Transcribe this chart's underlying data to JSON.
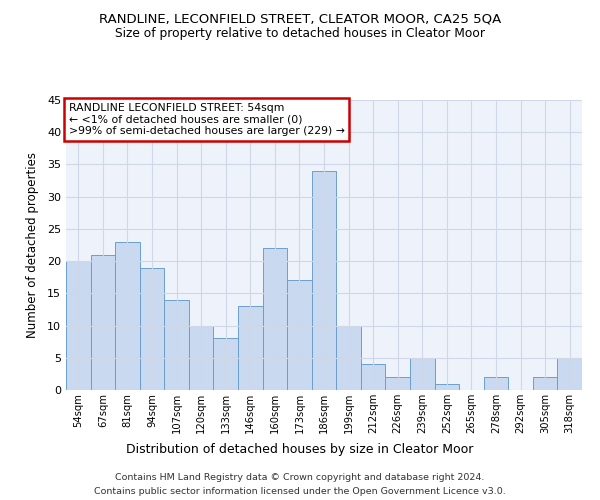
{
  "title": "RANDLINE, LECONFIELD STREET, CLEATOR MOOR, CA25 5QA",
  "subtitle": "Size of property relative to detached houses in Cleator Moor",
  "xlabel": "Distribution of detached houses by size in Cleator Moor",
  "ylabel": "Number of detached properties",
  "categories": [
    "54sqm",
    "67sqm",
    "81sqm",
    "94sqm",
    "107sqm",
    "120sqm",
    "133sqm",
    "146sqm",
    "160sqm",
    "173sqm",
    "186sqm",
    "199sqm",
    "212sqm",
    "226sqm",
    "239sqm",
    "252sqm",
    "265sqm",
    "278sqm",
    "292sqm",
    "305sqm",
    "318sqm"
  ],
  "values": [
    20,
    21,
    23,
    19,
    14,
    10,
    8,
    13,
    22,
    17,
    34,
    10,
    4,
    2,
    5,
    1,
    0,
    2,
    0,
    2,
    5
  ],
  "bar_color": "#c9d9f0",
  "bar_edge_color": "#6b9fcf",
  "ylim": [
    0,
    45
  ],
  "yticks": [
    0,
    5,
    10,
    15,
    20,
    25,
    30,
    35,
    40,
    45
  ],
  "annotation_title": "RANDLINE LECONFIELD STREET: 54sqm",
  "annotation_line1": "← <1% of detached houses are smaller (0)",
  "annotation_line2": ">99% of semi-detached houses are larger (229) →",
  "annotation_box_color": "#ffffff",
  "annotation_box_edge": "#cc0000",
  "footer_line1": "Contains HM Land Registry data © Crown copyright and database right 2024.",
  "footer_line2": "Contains public sector information licensed under the Open Government Licence v3.0.",
  "bg_color": "#eef2fa",
  "grid_color": "#d0d8e8"
}
